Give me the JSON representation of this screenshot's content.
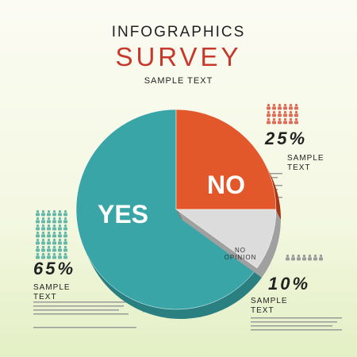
{
  "chart_data": {
    "type": "pie",
    "title": "INFOGRAPHICS",
    "subtitle": "SURVEY",
    "caption": "SAMPLE TEXT",
    "categories": [
      "YES",
      "NO",
      "NO OPINION"
    ],
    "values": [
      65,
      25,
      10
    ],
    "value_labels": [
      "65%",
      "25%",
      "10%"
    ],
    "colors": [
      "#3aa5a7",
      "#e2582a",
      "#dcdcdc"
    ],
    "notes": [
      "SAMPLE TEXT",
      "SAMPLE TEXT",
      "SAMPLE TEXT"
    ]
  }
}
